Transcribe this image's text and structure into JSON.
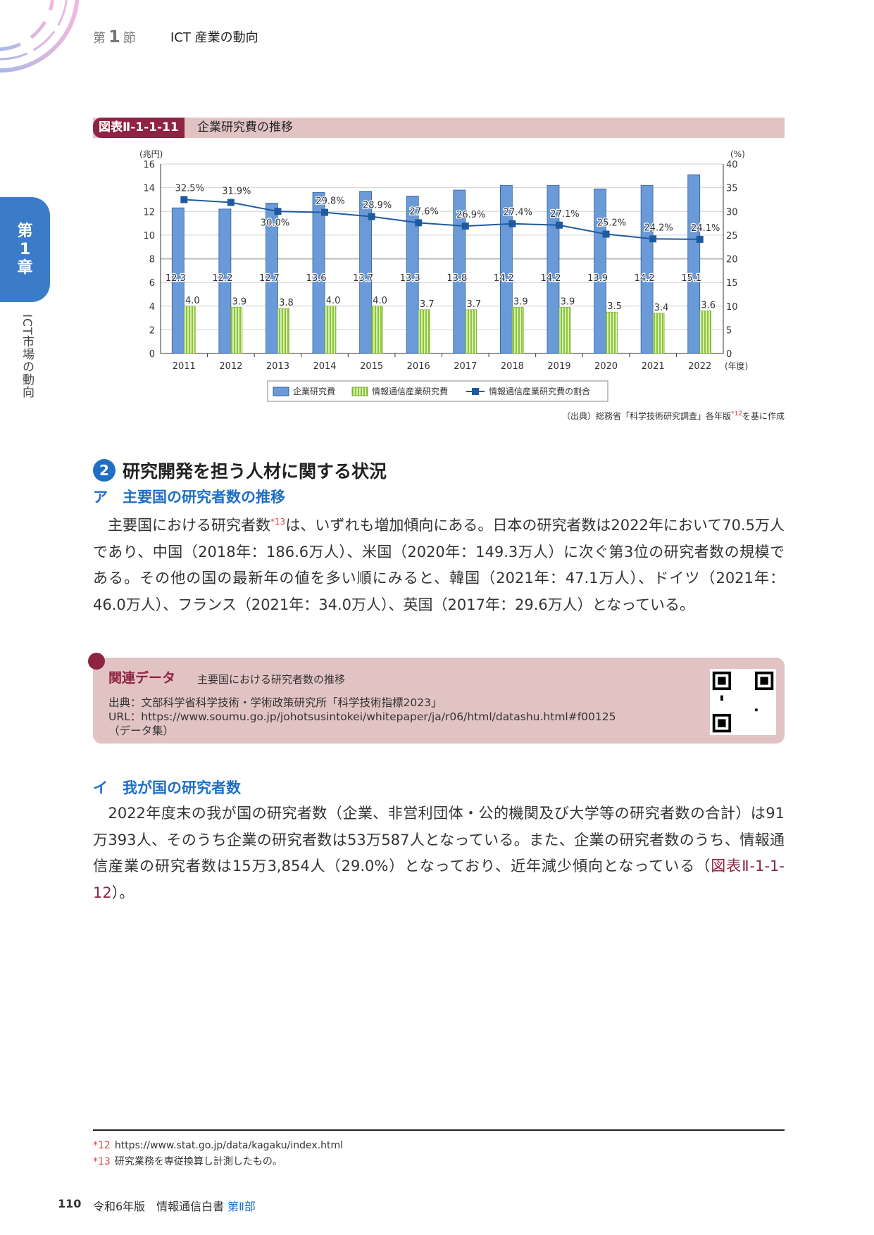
{
  "header": {
    "section_prefix": "第",
    "section_num": "1",
    "section_suffix": "節",
    "section_title": "ICT 産業の動向"
  },
  "chapter_tab": {
    "line1": "第",
    "line2": "1",
    "line3": "章",
    "vertical": "ICT市場の動向"
  },
  "figure": {
    "number": "図表Ⅱ-1-1-11",
    "title": "企業研究費の推移",
    "source": "（出典）総務省「科学技術研究調査」各年版",
    "source_ref": "*12",
    "source_tail": "を基に作成"
  },
  "chart_data": {
    "type": "bar+line",
    "categories": [
      "2011",
      "2012",
      "2013",
      "2014",
      "2015",
      "2016",
      "2017",
      "2018",
      "2019",
      "2020",
      "2021",
      "2022"
    ],
    "x_unit": "(年度)",
    "left_axis": {
      "label": "(兆円)",
      "range": [
        0,
        16
      ],
      "ticks": [
        "0",
        "2",
        "4",
        "6",
        "8",
        "10",
        "12",
        "14",
        "16"
      ]
    },
    "right_axis": {
      "label": "(%)",
      "range": [
        0,
        40
      ],
      "ticks": [
        "0",
        "5",
        "10",
        "15",
        "20",
        "25",
        "30",
        "35",
        "40"
      ]
    },
    "series": [
      {
        "name": "企業研究費",
        "type": "bar",
        "axis": "left",
        "color": "#6a9bd8",
        "values": [
          12.3,
          12.2,
          12.7,
          13.6,
          13.7,
          13.3,
          13.8,
          14.2,
          14.2,
          13.9,
          14.2,
          15.1
        ]
      },
      {
        "name": "情報通信産業研究費",
        "type": "bar",
        "axis": "left",
        "color": "#b5e07a",
        "values": [
          4.0,
          3.9,
          3.8,
          4.0,
          4.0,
          3.7,
          3.7,
          3.9,
          3.9,
          3.5,
          3.4,
          3.6
        ]
      },
      {
        "name": "情報通信産業研究費の割合",
        "type": "line",
        "axis": "right",
        "color": "#1f5aa0",
        "values": [
          32.5,
          31.9,
          30.0,
          29.8,
          28.9,
          27.6,
          26.9,
          27.4,
          27.1,
          25.2,
          24.2,
          24.1
        ],
        "labels": [
          "32.5%",
          "31.9%",
          "30.0%",
          "29.8%",
          "28.9%",
          "27.6%",
          "26.9%",
          "27.4%",
          "27.1%",
          "25.2%",
          "24.2%",
          "24.1%"
        ]
      }
    ],
    "grid": true,
    "legend": "bottom"
  },
  "section2": {
    "num": "2",
    "title": "研究開発を担う人材に関する状況"
  },
  "subA": {
    "title": "ア　主要国の研究者数の推移",
    "para_pre": "　主要国における研究者数",
    "para_ref": "*13",
    "para_post": "は、いずれも増加傾向にある。日本の研究者数は2022年において70.5万人であり、中国（2018年：186.6万人）、米国（2020年：149.3万人）に次ぐ第3位の研究者数の規模である。その他の国の最新年の値を多い順にみると、韓国（2021年：47.1万人）、ドイツ（2021年：46.0万人）、フランス（2021年：34.0万人）、英国（2017年：29.6万人）となっている。"
  },
  "related": {
    "label": "関連データ",
    "title": "主要国における研究者数の推移",
    "source": "出典：文部科学省科学技術・学術政策研究所「科学技術指標2023」",
    "url": "URL：https://www.soumu.go.jp/johotsusintokei/whitepaper/ja/r06/html/datashu.html#f00125",
    "note": "（データ集）"
  },
  "subI": {
    "title": "イ　我が国の研究者数",
    "para_pre": "　2022年度末の我が国の研究者数（企業、非営利団体・公的機関及び大学等の研究者数の合計）は91万393人、そのうち企業の研究者数は53万587人となっている。また、企業の研究者数のうち、情報通信産業の研究者数は15万3,854人（29.0%）となっており、近年減少傾向となっている（",
    "para_link": "図表Ⅱ-1-1-12",
    "para_post": "）。"
  },
  "footnotes": [
    {
      "mark": "*12",
      "text": "https://www.stat.go.jp/data/kagaku/index.html"
    },
    {
      "mark": "*13",
      "text": "研究業務を専従換算し計測したもの。"
    }
  ],
  "footer": {
    "page": "110",
    "book": "令和6年版　情報通信白書",
    "part": "第Ⅱ部"
  }
}
